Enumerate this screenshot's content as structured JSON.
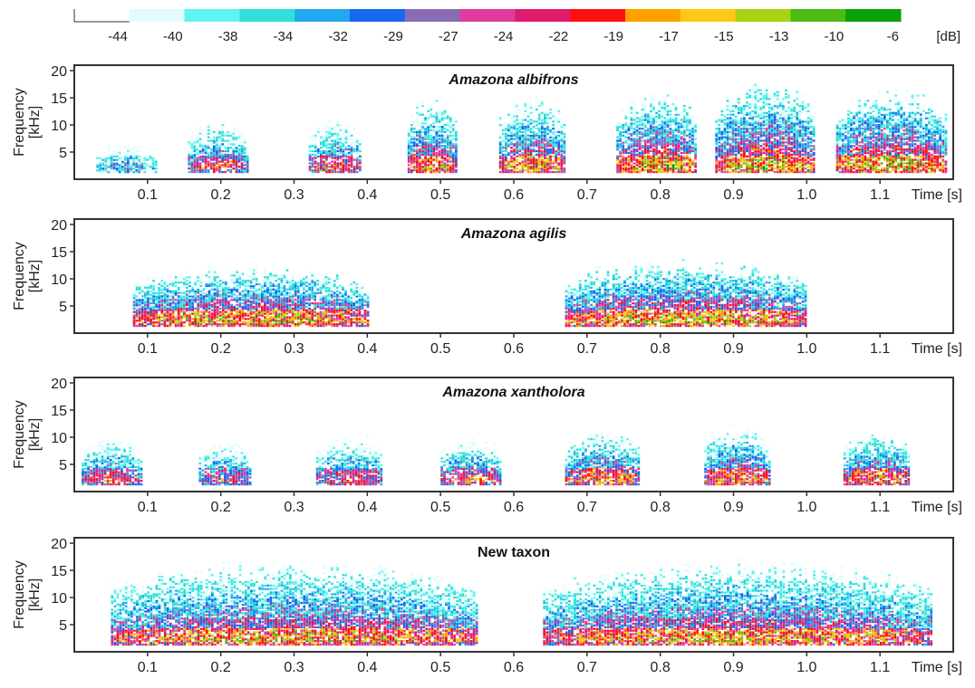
{
  "colorbar": {
    "ticks": [
      "-44",
      "-40",
      "-38",
      "-34",
      "-32",
      "-29",
      "-27",
      "-24",
      "-22",
      "-19",
      "-17",
      "-15",
      "-13",
      "-10",
      "-6"
    ],
    "unit": "[dB]",
    "colors": [
      "#ffffff",
      "#e4fbfb",
      "#5ff3f3",
      "#2ee0d8",
      "#22a8f0",
      "#1668f0",
      "#8a6cb4",
      "#e03c9e",
      "#e01a6c",
      "#ff1010",
      "#ffa000",
      "#ffc814",
      "#a8d414",
      "#4cbc14",
      "#0aa00a"
    ]
  },
  "chart_data": [
    {
      "type": "heatmap",
      "subtype": "spectrogram",
      "title": "Amazona albifrons",
      "title_style": "bold-italic",
      "ylabel": "Frequency [kHz]",
      "xlabel": "Time [s]",
      "yticks": [
        5,
        10,
        15,
        20
      ],
      "xticks": [
        0.1,
        0.2,
        0.3,
        0.4,
        0.5,
        0.6,
        0.7,
        0.8,
        0.9,
        1.0,
        1.1
      ],
      "xlim": [
        0.0,
        1.2
      ],
      "ylim": [
        0,
        21
      ],
      "units": [
        {
          "t0": 0.03,
          "t1": 0.11,
          "fmax": 8,
          "peak": -27
        },
        {
          "t0": 0.155,
          "t1": 0.235,
          "fmax": 11,
          "peak": -19
        },
        {
          "t0": 0.32,
          "t1": 0.39,
          "fmax": 11,
          "peak": -19
        },
        {
          "t0": 0.455,
          "t1": 0.52,
          "fmax": 14,
          "peak": -15
        },
        {
          "t0": 0.58,
          "t1": 0.67,
          "fmax": 14,
          "peak": -15
        },
        {
          "t0": 0.74,
          "t1": 0.85,
          "fmax": 14,
          "peak": -13
        },
        {
          "t0": 0.875,
          "t1": 1.01,
          "fmax": 16,
          "peak": -13
        },
        {
          "t0": 1.04,
          "t1": 1.19,
          "fmax": 15,
          "peak": -13
        }
      ]
    },
    {
      "type": "heatmap",
      "subtype": "spectrogram",
      "title": "Amazona agilis",
      "title_style": "bold-italic",
      "ylabel": "Frequency [kHz]",
      "xlabel": "Time [s]",
      "yticks": [
        5,
        10,
        15,
        20
      ],
      "xticks": [
        0.1,
        0.2,
        0.3,
        0.4,
        0.5,
        0.6,
        0.7,
        0.8,
        0.9,
        1.0,
        1.1
      ],
      "xlim": [
        0.0,
        1.2
      ],
      "ylim": [
        0,
        21
      ],
      "units": [
        {
          "t0": 0.08,
          "t1": 0.4,
          "fmax": 11,
          "peak": -13
        },
        {
          "t0": 0.67,
          "t1": 1.0,
          "fmax": 12,
          "peak": -13
        }
      ]
    },
    {
      "type": "heatmap",
      "subtype": "spectrogram",
      "title": "Amazona xantholora",
      "title_style": "bold-italic",
      "ylabel": "Frequency [kHz]",
      "xlabel": "Time [s]",
      "yticks": [
        5,
        10,
        15,
        20
      ],
      "xticks": [
        0.1,
        0.2,
        0.3,
        0.4,
        0.5,
        0.6,
        0.7,
        0.8,
        0.9,
        1.0,
        1.1
      ],
      "xlim": [
        0.0,
        1.2
      ],
      "ylim": [
        0,
        21
      ],
      "units": [
        {
          "t0": 0.01,
          "t1": 0.09,
          "fmax": 10,
          "peak": -19
        },
        {
          "t0": 0.17,
          "t1": 0.24,
          "fmax": 9,
          "peak": -19
        },
        {
          "t0": 0.33,
          "t1": 0.42,
          "fmax": 10,
          "peak": -19
        },
        {
          "t0": 0.5,
          "t1": 0.58,
          "fmax": 9,
          "peak": -17
        },
        {
          "t0": 0.67,
          "t1": 0.77,
          "fmax": 10,
          "peak": -15
        },
        {
          "t0": 0.86,
          "t1": 0.95,
          "fmax": 11,
          "peak": -15
        },
        {
          "t0": 1.05,
          "t1": 1.14,
          "fmax": 10,
          "peak": -15
        }
      ]
    },
    {
      "type": "heatmap",
      "subtype": "spectrogram",
      "title": "New taxon",
      "title_style": "bold",
      "ylabel": "Frequency [kHz]",
      "xlabel": "Time [s]",
      "yticks": [
        5,
        10,
        15,
        20
      ],
      "xticks": [
        0.1,
        0.2,
        0.3,
        0.4,
        0.5,
        0.6,
        0.7,
        0.8,
        0.9,
        1.0,
        1.1
      ],
      "xlim": [
        0.0,
        1.2
      ],
      "ylim": [
        0,
        21
      ],
      "units": [
        {
          "t0": 0.05,
          "t1": 0.55,
          "fmax": 15,
          "peak": -15
        },
        {
          "t0": 0.64,
          "t1": 1.17,
          "fmax": 15,
          "peak": -15
        }
      ]
    }
  ]
}
